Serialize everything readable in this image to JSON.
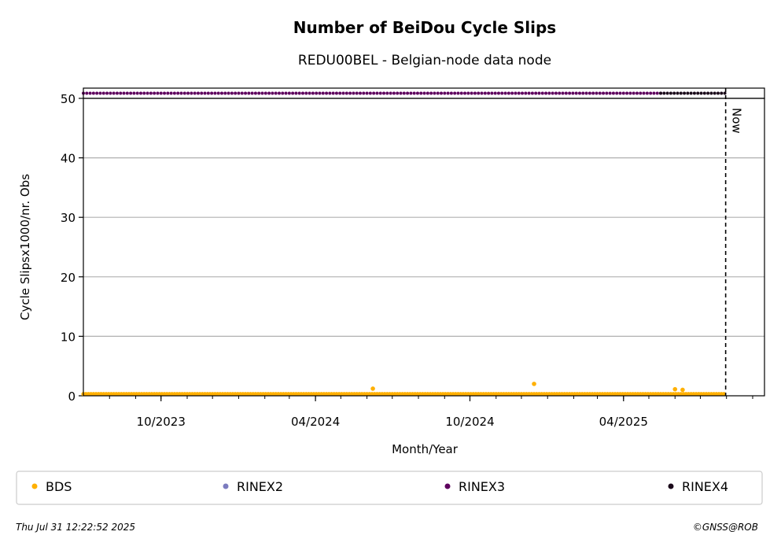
{
  "chart_data": {
    "type": "scatter",
    "title": "Number of BeiDou Cycle Slips",
    "subtitle": "REDU00BEL - Belgian-node data node",
    "xlabel": "Month/Year",
    "ylabel": "Cycle Slipsx1000/nr. Obs",
    "ylim": [
      0,
      50
    ],
    "yticks": [
      0,
      10,
      20,
      30,
      40,
      50
    ],
    "xlim": [
      "2023-07-01",
      "2025-09-15"
    ],
    "xticks": [
      {
        "date": "2023-10-01",
        "label": "10/2023"
      },
      {
        "date": "2024-04-01",
        "label": "04/2024"
      },
      {
        "date": "2024-10-01",
        "label": "10/2024"
      },
      {
        "date": "2025-04-01",
        "label": "04/2025"
      }
    ],
    "grid": "y",
    "now": {
      "date": "2025-07-31",
      "label": "Now"
    },
    "series": [
      {
        "name": "BDS",
        "color": "#ffb000",
        "marker": "dot",
        "x_start": "2023-07-01",
        "x_end": "2025-07-31",
        "typical_value": 0.3,
        "outliers": [
          {
            "date": "2024-06-08",
            "value": 1.2
          },
          {
            "date": "2024-12-16",
            "value": 2.0
          },
          {
            "date": "2025-06-01",
            "value": 1.1
          },
          {
            "date": "2025-06-10",
            "value": 1.0
          }
        ]
      },
      {
        "name": "RINEX2",
        "color": "#7b7bbf",
        "marker": "dot"
      },
      {
        "name": "RINEX3",
        "color": "#5e005e",
        "marker": "dot",
        "x_start": "2023-07-01",
        "x_end": "2025-05-15",
        "value": 51
      },
      {
        "name": "RINEX4",
        "color": "#1a0a1a",
        "marker": "dot",
        "x_start": "2025-05-15",
        "x_end": "2025-07-31",
        "value": 51
      }
    ],
    "legend_position": "bottom"
  },
  "footer": {
    "timestamp": "Thu Jul 31 12:22:52 2025",
    "credit": "©GNSS@ROB"
  }
}
